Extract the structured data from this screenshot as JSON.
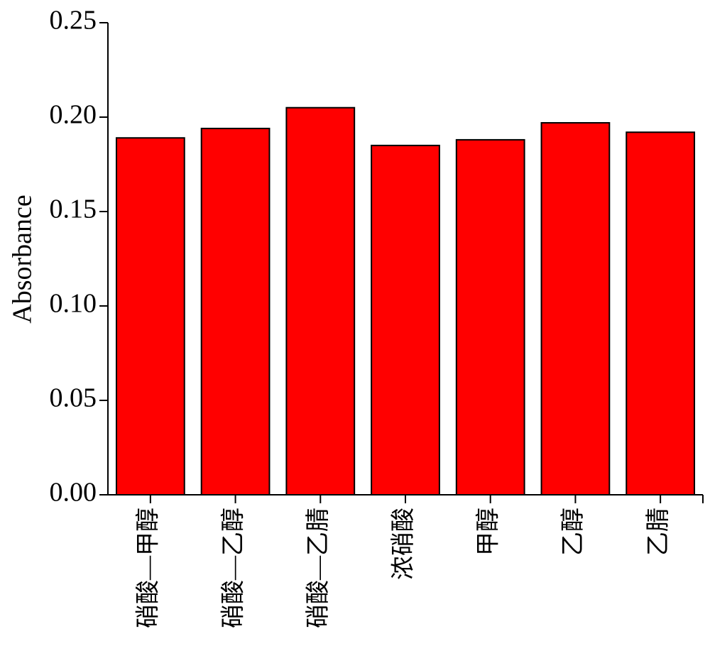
{
  "chart_data": {
    "type": "bar",
    "y_label": "Absorbance",
    "categories": [
      "硝酸—甲醇",
      "硝酸—乙醇",
      "硝酸—乙腈",
      "浓硝酸",
      "甲醇",
      "乙醇",
      "乙腈"
    ],
    "values": [
      0.189,
      0.194,
      0.205,
      0.185,
      0.188,
      0.197,
      0.192
    ],
    "color": "#ff0000",
    "ylim": [
      0,
      0.25
    ],
    "yticks": [
      {
        "value": 0,
        "label": "0.00"
      },
      {
        "value": 0.05,
        "label": "0.05"
      },
      {
        "value": 0.1,
        "label": "0.10"
      },
      {
        "value": 0.15,
        "label": "0.15"
      },
      {
        "value": 0.2,
        "label": "0.20"
      },
      {
        "value": 0.25,
        "label": "0.25"
      }
    ],
    "grid": false
  }
}
